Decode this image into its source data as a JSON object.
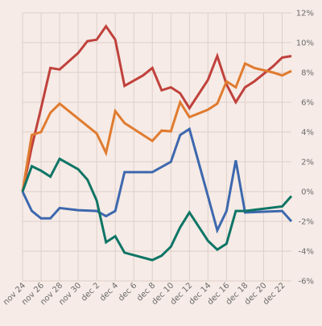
{
  "chart_data": {
    "type": "line",
    "grid": true,
    "y_axis_position": "right",
    "ylim": [
      -6,
      12
    ],
    "yticks": [
      -6,
      -4,
      -2,
      0,
      2,
      4,
      6,
      8,
      10,
      12
    ],
    "ytick_labels": [
      "-6%",
      "-4%",
      "-2%",
      "0%",
      "2%",
      "4%",
      "6%",
      "8%",
      "10%",
      "12%"
    ],
    "x_start": "2023-11-24",
    "xtick_labels": [
      "nov 24",
      "nov 26",
      "nov 28",
      "nov 30",
      "dec 2",
      "dec 4",
      "dec 6",
      "dec 8",
      "dec 10",
      "dec 12",
      "dec 14",
      "dec 16",
      "dec 18",
      "dec 20",
      "dec 22"
    ],
    "xticks": [
      "2023-11-24",
      "2023-11-26",
      "2023-11-28",
      "2023-11-30",
      "2023-12-02",
      "2023-12-04",
      "2023-12-06",
      "2023-12-08",
      "2023-12-10",
      "2023-12-12",
      "2023-12-14",
      "2023-12-16",
      "2023-12-18",
      "2023-12-20",
      "2023-12-22"
    ],
    "series": [
      {
        "color": "#c0413c",
        "points": [
          [
            "2023-11-24",
            0.0
          ],
          [
            "2023-11-25",
            3.0
          ],
          [
            "2023-11-26",
            5.6
          ],
          [
            "2023-11-27",
            8.3
          ],
          [
            "2023-11-28",
            8.2
          ],
          [
            "2023-11-30",
            9.3
          ],
          [
            "2023-12-01",
            10.1
          ],
          [
            "2023-12-02",
            10.2
          ],
          [
            "2023-12-03",
            11.1
          ],
          [
            "2023-12-04",
            10.2
          ],
          [
            "2023-12-05",
            7.1
          ],
          [
            "2023-12-07",
            7.8
          ],
          [
            "2023-12-08",
            8.3
          ],
          [
            "2023-12-09",
            6.8
          ],
          [
            "2023-12-10",
            7.0
          ],
          [
            "2023-12-11",
            6.6
          ],
          [
            "2023-12-12",
            5.6
          ],
          [
            "2023-12-14",
            7.5
          ],
          [
            "2023-12-15",
            9.1
          ],
          [
            "2023-12-16",
            7.2
          ],
          [
            "2023-12-17",
            6.0
          ],
          [
            "2023-12-18",
            7.0
          ],
          [
            "2023-12-19",
            7.4
          ],
          [
            "2023-12-21",
            8.4
          ],
          [
            "2023-12-22",
            9.0
          ],
          [
            "2023-12-23",
            9.1
          ]
        ]
      },
      {
        "color": "#e07b2f",
        "points": [
          [
            "2023-11-24",
            0.0
          ],
          [
            "2023-11-25",
            3.8
          ],
          [
            "2023-11-26",
            4.0
          ],
          [
            "2023-11-27",
            5.3
          ],
          [
            "2023-11-28",
            5.9
          ],
          [
            "2023-11-30",
            4.9
          ],
          [
            "2023-12-01",
            4.4
          ],
          [
            "2023-12-02",
            3.9
          ],
          [
            "2023-12-03",
            2.6
          ],
          [
            "2023-12-04",
            5.4
          ],
          [
            "2023-12-05",
            4.6
          ],
          [
            "2023-12-08",
            3.4
          ],
          [
            "2023-12-09",
            4.1
          ],
          [
            "2023-12-10",
            4.05
          ],
          [
            "2023-12-11",
            6.0
          ],
          [
            "2023-12-12",
            5.0
          ],
          [
            "2023-12-14",
            5.5
          ],
          [
            "2023-12-15",
            5.9
          ],
          [
            "2023-12-16",
            7.4
          ],
          [
            "2023-12-17",
            7.0
          ],
          [
            "2023-12-18",
            8.6
          ],
          [
            "2023-12-19",
            8.3
          ],
          [
            "2023-12-21",
            8.0
          ],
          [
            "2023-12-22",
            7.8
          ],
          [
            "2023-12-23",
            8.1
          ]
        ]
      },
      {
        "color": "#3d68ae",
        "points": [
          [
            "2023-11-24",
            0.0
          ],
          [
            "2023-11-25",
            -1.3
          ],
          [
            "2023-11-26",
            -1.8
          ],
          [
            "2023-11-27",
            -1.8
          ],
          [
            "2023-11-28",
            -1.1
          ],
          [
            "2023-11-30",
            -1.25
          ],
          [
            "2023-12-02",
            -1.3
          ],
          [
            "2023-12-03",
            -1.65
          ],
          [
            "2023-12-04",
            -1.3
          ],
          [
            "2023-12-05",
            1.3
          ],
          [
            "2023-12-08",
            1.3
          ],
          [
            "2023-12-10",
            2.0
          ],
          [
            "2023-12-11",
            3.8
          ],
          [
            "2023-12-12",
            4.2
          ],
          [
            "2023-12-14",
            -0.3
          ],
          [
            "2023-12-15",
            -2.6
          ],
          [
            "2023-12-16",
            -1.3
          ],
          [
            "2023-12-17",
            2.1
          ],
          [
            "2023-12-18",
            -1.4
          ],
          [
            "2023-12-22",
            -1.3
          ],
          [
            "2023-12-23",
            -2.0
          ]
        ]
      },
      {
        "color": "#0f7566",
        "points": [
          [
            "2023-11-24",
            0.0
          ],
          [
            "2023-11-25",
            1.7
          ],
          [
            "2023-11-26",
            1.4
          ],
          [
            "2023-11-27",
            1.0
          ],
          [
            "2023-11-28",
            2.2
          ],
          [
            "2023-11-30",
            1.5
          ],
          [
            "2023-12-01",
            0.8
          ],
          [
            "2023-12-02",
            -0.6
          ],
          [
            "2023-12-03",
            -3.4
          ],
          [
            "2023-12-04",
            -3.0
          ],
          [
            "2023-12-05",
            -4.1
          ],
          [
            "2023-12-08",
            -4.6
          ],
          [
            "2023-12-09",
            -4.3
          ],
          [
            "2023-12-10",
            -3.7
          ],
          [
            "2023-12-11",
            -2.4
          ],
          [
            "2023-12-12",
            -1.4
          ],
          [
            "2023-12-14",
            -3.3
          ],
          [
            "2023-12-15",
            -3.9
          ],
          [
            "2023-12-16",
            -3.5
          ],
          [
            "2023-12-17",
            -1.3
          ],
          [
            "2023-12-18",
            -1.3
          ],
          [
            "2023-12-22",
            -1.0
          ],
          [
            "2023-12-23",
            -0.3
          ]
        ]
      }
    ]
  }
}
